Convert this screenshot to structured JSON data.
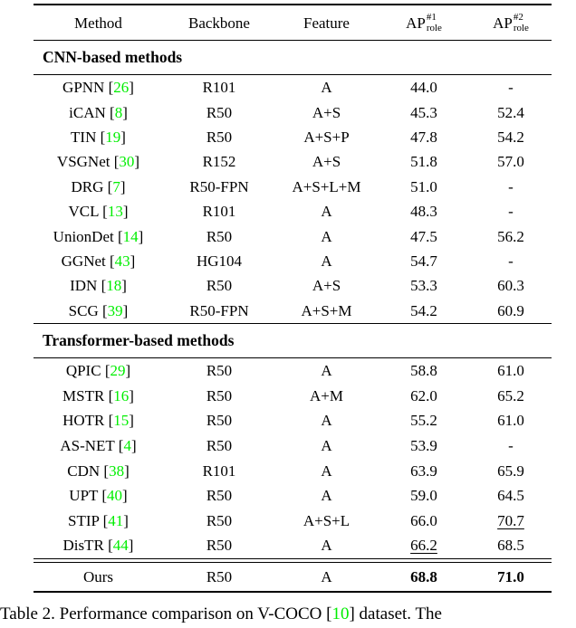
{
  "colors": {
    "citation_green": "#00ee00",
    "text": "#000000"
  },
  "table": {
    "columns": [
      {
        "label": "Method"
      },
      {
        "label": "Backbone"
      },
      {
        "label": "Feature"
      },
      {
        "label": "AP",
        "sup": "#1",
        "sub": "role"
      },
      {
        "label": "AP",
        "sup": "#2",
        "sub": "role"
      }
    ],
    "cite_open": "[",
    "cite_close": "]",
    "sections": [
      {
        "header": "CNN-based methods",
        "rows": [
          {
            "method": "GPNN",
            "cite": "26",
            "backbone": "R101",
            "feature": "A",
            "ap1": "44.0",
            "ap2": "-"
          },
          {
            "method": "iCAN",
            "cite": "8",
            "backbone": "R50",
            "feature": "A+S",
            "ap1": "45.3",
            "ap2": "52.4"
          },
          {
            "method": "TIN",
            "cite": "19",
            "backbone": "R50",
            "feature": "A+S+P",
            "ap1": "47.8",
            "ap2": "54.2"
          },
          {
            "method": "VSGNet",
            "cite": "30",
            "backbone": "R152",
            "feature": "A+S",
            "ap1": "51.8",
            "ap2": "57.0"
          },
          {
            "method": "DRG",
            "cite": "7",
            "backbone": "R50-FPN",
            "feature": "A+S+L+M",
            "ap1": "51.0",
            "ap2": "-"
          },
          {
            "method": "VCL",
            "cite": "13",
            "backbone": "R101",
            "feature": "A",
            "ap1": "48.3",
            "ap2": "-"
          },
          {
            "method": "UnionDet",
            "cite": "14",
            "backbone": "R50",
            "feature": "A",
            "ap1": "47.5",
            "ap2": "56.2"
          },
          {
            "method": "GGNet",
            "cite": "43",
            "backbone": "HG104",
            "feature": "A",
            "ap1": "54.7",
            "ap2": "-"
          },
          {
            "method": "IDN",
            "cite": "18",
            "backbone": "R50",
            "feature": "A+S",
            "ap1": "53.3",
            "ap2": "60.3"
          },
          {
            "method": "SCG",
            "cite": "39",
            "backbone": "R50-FPN",
            "feature": "A+S+M",
            "ap1": "54.2",
            "ap2": "60.9"
          }
        ]
      },
      {
        "header": "Transformer-based methods",
        "rows": [
          {
            "method": "QPIC",
            "cite": "29",
            "backbone": "R50",
            "feature": "A",
            "ap1": "58.8",
            "ap2": "61.0"
          },
          {
            "method": "MSTR",
            "cite": "16",
            "backbone": "R50",
            "feature": "A+M",
            "ap1": "62.0",
            "ap2": "65.2"
          },
          {
            "method": "HOTR",
            "cite": "15",
            "backbone": "R50",
            "feature": "A",
            "ap1": "55.2",
            "ap2": "61.0"
          },
          {
            "method": "AS-NET",
            "cite": "4",
            "backbone": "R50",
            "feature": "A",
            "ap1": "53.9",
            "ap2": "-"
          },
          {
            "method": "CDN",
            "cite": "38",
            "backbone": "R101",
            "feature": "A",
            "ap1": "63.9",
            "ap2": "65.9"
          },
          {
            "method": "UPT",
            "cite": "40",
            "backbone": "R50",
            "feature": "A",
            "ap1": "59.0",
            "ap2": "64.5"
          },
          {
            "method": "STIP",
            "cite": "41",
            "backbone": "R50",
            "feature": "A+S+L",
            "ap1": "66.0",
            "ap2": "70.7",
            "ap2_underline": true
          },
          {
            "method": "DisTR",
            "cite": "44",
            "backbone": "R50",
            "feature": "A",
            "ap1": "66.2",
            "ap2": "68.5",
            "ap1_underline": true
          }
        ]
      }
    ],
    "final_row": {
      "method": "Ours",
      "backbone": "R50",
      "feature": "A",
      "ap1": "68.8",
      "ap2": "71.0",
      "ap1_bold": true,
      "ap2_bold": true
    }
  },
  "caption": {
    "prefix": "Table 2. Performance comparison on V-COCO ",
    "cite_open": "[",
    "cite": "10",
    "cite_close": "]",
    "suffix": " dataset. The"
  }
}
